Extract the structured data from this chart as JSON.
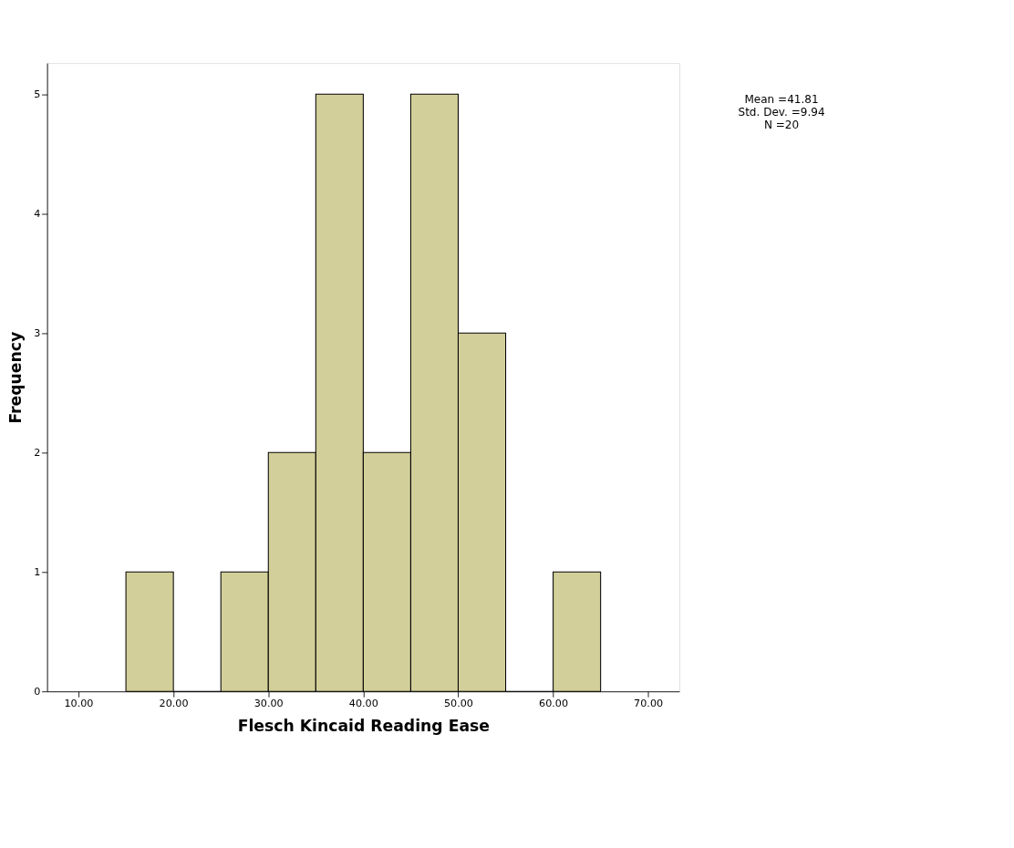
{
  "chart_data": {
    "type": "histogram",
    "xlabel": "Flesch Kincaid Reading Ease",
    "ylabel": "Frequency",
    "bins": [
      15,
      20,
      25,
      30,
      35,
      40,
      45,
      50,
      55,
      60,
      65
    ],
    "values": [
      1,
      0,
      1,
      2,
      5,
      2,
      5,
      3,
      0,
      1
    ],
    "color": "#d3cf9a",
    "xlim": [
      6.7,
      73.3
    ],
    "xticks": [
      {
        "value": 10,
        "label": "10.00"
      },
      {
        "value": 20,
        "label": "20.00"
      },
      {
        "value": 30,
        "label": "30.00"
      },
      {
        "value": 40,
        "label": "40.00"
      },
      {
        "value": 50,
        "label": "50.00"
      },
      {
        "value": 60,
        "label": "60.00"
      },
      {
        "value": 70,
        "label": "70.00"
      }
    ],
    "ylim": [
      0,
      5.26
    ],
    "yticks": [
      0,
      1,
      2,
      3,
      4,
      5
    ],
    "grid": false,
    "annotations": [
      "Mean =41.81",
      "Std. Dev. =9.94",
      "N =20"
    ]
  }
}
